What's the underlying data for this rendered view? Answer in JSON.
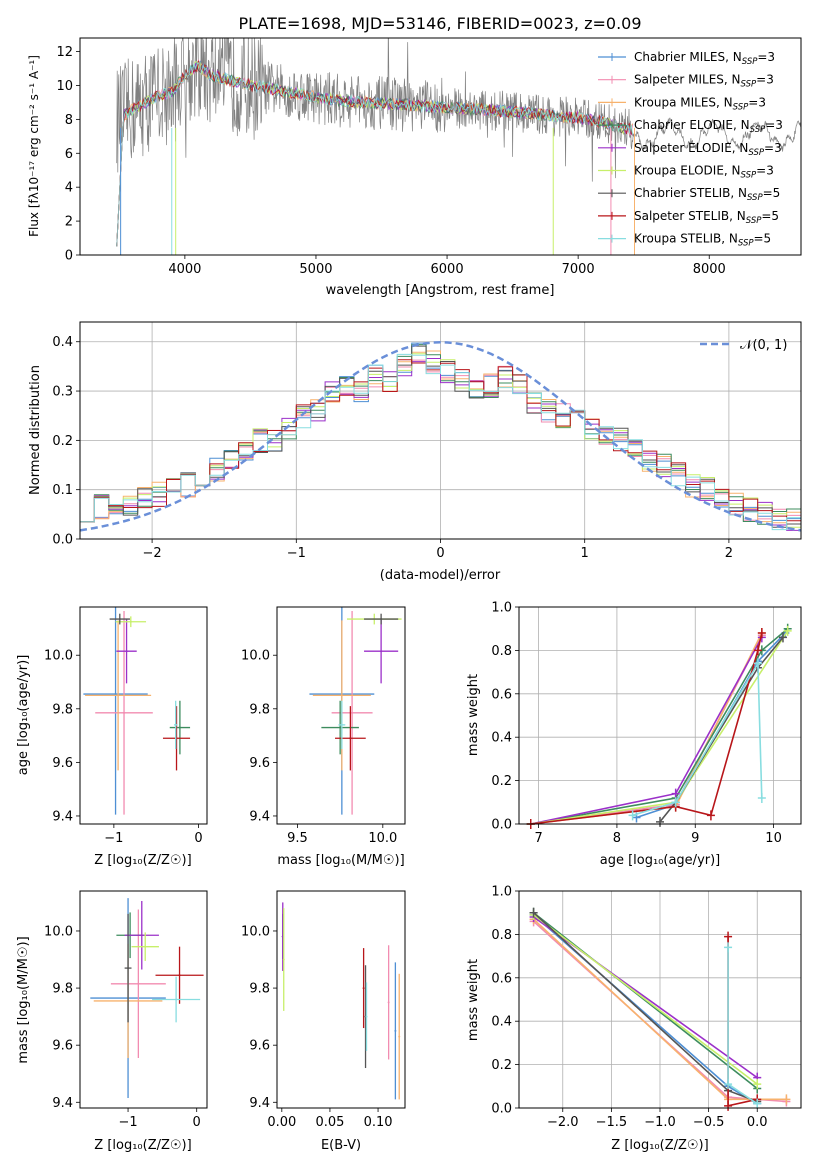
{
  "figure_title": "PLATE=1698, MJD=53146, FIBERID=0023, z=0.09",
  "colors": [
    "#4e8fd4",
    "#f28cb1",
    "#f7b26d",
    "#3d8c5e",
    "#9b30c9",
    "#c7ef6a",
    "#555555",
    "#b8161a",
    "#88dde0"
  ],
  "chart_data": [
    {
      "id": "spectrum",
      "type": "line",
      "xlabel": "wavelength [Angstrom, rest frame]",
      "ylabel": "Flux [fλ10⁻¹⁷ erg cm⁻² s⁻¹ A⁻¹]",
      "xlim": [
        3200,
        8700
      ],
      "ylim": [
        0,
        12.8
      ],
      "xticks": [
        4000,
        5000,
        6000,
        7000,
        8000
      ],
      "yticks": [
        0,
        2,
        4,
        6,
        8,
        10,
        12
      ],
      "grid": false,
      "legend": "upper-right",
      "series": [
        {
          "name": "Chabrier MILES, N_SSP=3",
          "label_main": "Chabrier MILES, N",
          "label_sub": "SSP",
          "label_tail": "=3"
        },
        {
          "name": "Salpeter MILES, N_SSP=3",
          "label_main": "Salpeter MILES, N",
          "label_sub": "SSP",
          "label_tail": "=3"
        },
        {
          "name": "Kroupa MILES, N_SSP=3",
          "label_main": "Kroupa MILES, N",
          "label_sub": "SSP",
          "label_tail": "=3"
        },
        {
          "name": "Chabrier ELODIE, N_SSP=3",
          "label_main": "Chabrier ELODIE, N",
          "label_sub": "SSP",
          "label_tail": "=3"
        },
        {
          "name": "Salpeter ELODIE, N_SSP=3",
          "label_main": "Salpeter ELODIE, N",
          "label_sub": "SSP",
          "label_tail": "=3"
        },
        {
          "name": "Kroupa ELODIE, N_SSP=3",
          "label_main": "Kroupa ELODIE, N",
          "label_sub": "SSP",
          "label_tail": "=3"
        },
        {
          "name": "Chabrier STELIB, N_SSP=5",
          "label_main": "Chabrier STELIB, N",
          "label_sub": "SSP",
          "label_tail": "=5"
        },
        {
          "name": "Salpeter STELIB, N_SSP=5",
          "label_main": "Salpeter STELIB, N",
          "label_sub": "SSP",
          "label_tail": "=5"
        },
        {
          "name": "Kroupa STELIB, N_SSP=5",
          "label_main": "Kroupa STELIB, N",
          "label_sub": "SSP",
          "label_tail": "=5"
        }
      ],
      "model_continuum": {
        "x": [
          3500,
          3600,
          3700,
          3800,
          3900,
          4000,
          4100,
          4200,
          4300,
          4400,
          4500,
          4600,
          4800,
          5000,
          5200,
          5400,
          5600,
          5800,
          6000,
          6200,
          6400,
          6600,
          6800,
          7000,
          7200,
          7400
        ],
        "y": [
          8.0,
          8.6,
          9.0,
          9.4,
          9.6,
          10.6,
          11.2,
          10.6,
          10.4,
          10.2,
          10.0,
          9.9,
          9.6,
          9.3,
          9.1,
          9.0,
          8.9,
          8.8,
          8.7,
          8.6,
          8.5,
          8.4,
          8.2,
          8.1,
          7.8,
          7.4
        ]
      }
    },
    {
      "id": "residuals",
      "type": "line",
      "xlabel": "(data-model)/error",
      "ylabel": "Normed distribution",
      "xlim": [
        -2.5,
        2.5
      ],
      "ylim": [
        0,
        0.44
      ],
      "xticks": [
        -2,
        -1,
        0,
        1,
        2
      ],
      "xticklabels": [
        "−2",
        "−1",
        "0",
        "1",
        "2"
      ],
      "yticks": [
        0.0,
        0.1,
        0.2,
        0.3,
        0.4
      ],
      "yticklabels": [
        "0.0",
        "0.1",
        "0.2",
        "0.3",
        "0.4"
      ],
      "grid": true,
      "legend": "upper-right",
      "reference_curve": {
        "name": "𝒩(0, 1)",
        "mean": 0,
        "std": 1,
        "color": "#6a8fd8"
      },
      "histogram": {
        "bin_width": 0.1,
        "x": [
          -2.45,
          -2.35,
          -2.25,
          -2.15,
          -2.05,
          -1.95,
          -1.85,
          -1.75,
          -1.65,
          -1.55,
          -1.45,
          -1.35,
          -1.25,
          -1.15,
          -1.05,
          -0.95,
          -0.85,
          -0.75,
          -0.65,
          -0.55,
          -0.45,
          -0.35,
          -0.25,
          -0.15,
          -0.05,
          0.05,
          0.15,
          0.25,
          0.35,
          0.45,
          0.55,
          0.65,
          0.75,
          0.85,
          0.95,
          1.05,
          1.15,
          1.25,
          1.35,
          1.45,
          1.55,
          1.65,
          1.75,
          1.85,
          1.95,
          2.05,
          2.15,
          2.25,
          2.35,
          2.45
        ],
        "y": [
          0.06,
          0.065,
          0.055,
          0.07,
          0.08,
          0.09,
          0.1,
          0.11,
          0.13,
          0.14,
          0.16,
          0.18,
          0.2,
          0.2,
          0.22,
          0.25,
          0.26,
          0.3,
          0.31,
          0.3,
          0.33,
          0.32,
          0.35,
          0.38,
          0.36,
          0.34,
          0.32,
          0.3,
          0.31,
          0.33,
          0.31,
          0.28,
          0.26,
          0.25,
          0.24,
          0.22,
          0.21,
          0.2,
          0.18,
          0.16,
          0.15,
          0.13,
          0.11,
          0.1,
          0.08,
          0.07,
          0.06,
          0.05,
          0.04,
          0.04
        ]
      }
    },
    {
      "id": "z-vs-age",
      "type": "scatter",
      "xlabel": "Z [log₁₀(Z/Z☉)]",
      "ylabel": "age  [log₁₀(age/yr)]",
      "xlim": [
        -1.4,
        0.1
      ],
      "ylim": [
        9.37,
        10.18
      ],
      "xticks": [
        -1,
        0
      ],
      "xticklabels": [
        "−1",
        "0"
      ],
      "yticks": [
        9.4,
        9.6,
        9.8,
        10.0
      ],
      "yticklabels": [
        "9.4",
        "9.6",
        "9.8",
        "10.0"
      ],
      "grid": false,
      "points": [
        {
          "x": -0.98,
          "y": 9.855,
          "xerr": 0.38,
          "yerr": 0.45,
          "series": 0
        },
        {
          "x": -0.88,
          "y": 9.785,
          "xerr": 0.34,
          "yerr": 0.38,
          "series": 1
        },
        {
          "x": -0.95,
          "y": 9.85,
          "xerr": 0.39,
          "yerr": 0.28,
          "series": 2
        },
        {
          "x": -0.22,
          "y": 9.73,
          "xerr": 0.12,
          "yerr": 0.1,
          "series": 3
        },
        {
          "x": -0.85,
          "y": 10.015,
          "xerr": 0.12,
          "yerr": 0.12,
          "series": 4
        },
        {
          "x": -0.8,
          "y": 10.125,
          "xerr": 0.18,
          "yerr": 0.02,
          "series": 5
        },
        {
          "x": -0.93,
          "y": 10.135,
          "xerr": 0.12,
          "yerr": 0.02,
          "series": 6
        },
        {
          "x": -0.26,
          "y": 9.69,
          "xerr": 0.16,
          "yerr": 0.12,
          "series": 7
        },
        {
          "x": -0.27,
          "y": 9.74,
          "xerr": 0.02,
          "yerr": 0.09,
          "series": 8
        }
      ]
    },
    {
      "id": "mass-vs-age",
      "type": "scatter",
      "xlabel": "mass [log₁₀(M/M☉)]",
      "ylabel": "",
      "xlim": [
        9.38,
        10.13
      ],
      "ylim": [
        9.37,
        10.18
      ],
      "xticks": [
        9.5,
        10.0
      ],
      "xticklabels": [
        "9.5",
        "10.0"
      ],
      "yticks": [
        9.4,
        9.6,
        9.8,
        10.0
      ],
      "yticklabels": [
        "9.4",
        "9.6",
        "9.8",
        "10.0"
      ],
      "grid": false,
      "points": [
        {
          "x": 9.76,
          "y": 9.855,
          "xerr": 0.19,
          "yerr": 0.45,
          "series": 0
        },
        {
          "x": 9.82,
          "y": 9.785,
          "xerr": 0.12,
          "yerr": 0.38,
          "series": 1
        },
        {
          "x": 9.76,
          "y": 9.85,
          "xerr": 0.17,
          "yerr": 0.28,
          "series": 2
        },
        {
          "x": 9.75,
          "y": 9.73,
          "xerr": 0.11,
          "yerr": 0.1,
          "series": 3
        },
        {
          "x": 9.99,
          "y": 10.015,
          "xerr": 0.1,
          "yerr": 0.12,
          "series": 4
        },
        {
          "x": 9.95,
          "y": 10.135,
          "xerr": 0.16,
          "yerr": 0.02,
          "series": 5
        },
        {
          "x": 9.99,
          "y": 10.135,
          "xerr": 0.1,
          "yerr": 0.02,
          "series": 6
        },
        {
          "x": 9.81,
          "y": 9.69,
          "xerr": 0.09,
          "yerr": 0.12,
          "series": 7
        },
        {
          "x": 9.76,
          "y": 9.74,
          "xerr": 0.02,
          "yerr": 0.09,
          "series": 8
        }
      ]
    },
    {
      "id": "age-weights",
      "type": "line",
      "xlabel": "age  [log₁₀(age/yr)]",
      "ylabel": "mass weight",
      "xlim": [
        6.75,
        10.35
      ],
      "ylim": [
        0,
        1.0
      ],
      "xticks": [
        7,
        8,
        9,
        10
      ],
      "yticks": [
        0.0,
        0.2,
        0.4,
        0.6,
        0.8,
        1.0
      ],
      "yticklabels": [
        "0.0",
        "0.2",
        "0.4",
        "0.6",
        "0.8",
        "1.0"
      ],
      "grid": true,
      "series": [
        {
          "series": 0,
          "x": [
            8.25,
            8.75,
            9.8,
            10.15
          ],
          "y": [
            0.03,
            0.09,
            0.75,
            0.88
          ]
        },
        {
          "series": 1,
          "x": [
            6.9,
            8.75,
            9.85
          ],
          "y": [
            0.0,
            0.09,
            0.87
          ]
        },
        {
          "series": 2,
          "x": [
            6.9,
            8.75,
            9.85
          ],
          "y": [
            0.0,
            0.08,
            0.88
          ]
        },
        {
          "series": 3,
          "x": [
            6.9,
            8.75,
            9.85,
            10.18
          ],
          "y": [
            0.0,
            0.12,
            0.8,
            0.9
          ]
        },
        {
          "series": 4,
          "x": [
            6.9,
            8.75,
            9.85
          ],
          "y": [
            0.0,
            0.14,
            0.86
          ]
        },
        {
          "series": 5,
          "x": [
            6.9,
            8.75,
            10.18
          ],
          "y": [
            0.0,
            0.1,
            0.89
          ]
        },
        {
          "series": 6,
          "x": [
            8.55,
            8.75,
            9.8,
            10.12
          ],
          "y": [
            0.01,
            0.1,
            0.72,
            0.86
          ]
        },
        {
          "series": 7,
          "x": [
            6.9,
            8.75,
            9.2,
            9.8,
            9.85
          ],
          "y": [
            0.0,
            0.08,
            0.04,
            0.8,
            0.88
          ]
        },
        {
          "series": 8,
          "x": [
            8.2,
            8.75,
            9.8,
            9.85
          ],
          "y": [
            0.04,
            0.1,
            0.74,
            0.12
          ]
        }
      ]
    },
    {
      "id": "z-vs-mass",
      "type": "scatter",
      "xlabel": "Z [log₁₀(Z/Z☉)]",
      "ylabel": "mass [log₁₀(M/M☉)]",
      "xlim": [
        -1.7,
        0.15
      ],
      "ylim": [
        9.38,
        10.14
      ],
      "xticks": [
        -1,
        0
      ],
      "xticklabels": [
        "−1",
        "0"
      ],
      "yticks": [
        9.4,
        9.6,
        9.8,
        10.0
      ],
      "yticklabels": [
        "9.4",
        "9.6",
        "9.8",
        "10.0"
      ],
      "grid": false,
      "points": [
        {
          "x": -1.0,
          "y": 9.765,
          "xerr": 0.55,
          "yerr": 0.35,
          "series": 0
        },
        {
          "x": -0.85,
          "y": 9.815,
          "xerr": 0.4,
          "yerr": 0.26,
          "series": 1
        },
        {
          "x": -1.0,
          "y": 9.755,
          "xerr": 0.5,
          "yerr": 0.2,
          "series": 2
        },
        {
          "x": -0.97,
          "y": 9.985,
          "xerr": 0.2,
          "yerr": 0.08,
          "series": 3
        },
        {
          "x": -0.8,
          "y": 9.985,
          "xerr": 0.25,
          "yerr": 0.12,
          "series": 4
        },
        {
          "x": -0.75,
          "y": 9.945,
          "xerr": 0.2,
          "yerr": 0.05,
          "series": 5
        },
        {
          "x": -1.0,
          "y": 9.87,
          "xerr": 0.05,
          "yerr": 0.19,
          "series": 6
        },
        {
          "x": -0.25,
          "y": 9.845,
          "xerr": 0.35,
          "yerr": 0.1,
          "series": 7
        },
        {
          "x": -0.3,
          "y": 9.76,
          "xerr": 0.35,
          "yerr": 0.08,
          "series": 8
        }
      ]
    },
    {
      "id": "ebv-vs-mass",
      "type": "scatter",
      "xlabel": "E(B-V)",
      "ylabel": "",
      "xlim": [
        -0.005,
        0.128
      ],
      "ylim": [
        9.38,
        10.14
      ],
      "xticks": [
        0.0,
        0.05,
        0.1
      ],
      "xticklabels": [
        "0.00",
        "0.05",
        "0.10"
      ],
      "yticks": [
        9.4,
        9.6,
        9.8,
        10.0
      ],
      "yticklabels": [
        "9.4",
        "9.6",
        "9.8",
        "10.0"
      ],
      "grid": false,
      "points": [
        {
          "x": 0.118,
          "y": 9.65,
          "yerr": 0.24,
          "series": 0
        },
        {
          "x": 0.111,
          "y": 9.75,
          "yerr": 0.2,
          "series": 1
        },
        {
          "x": 0.122,
          "y": 9.63,
          "yerr": 0.22,
          "series": 2
        },
        {
          "x": 0.001,
          "y": 9.98,
          "yerr": 0.08,
          "series": 3
        },
        {
          "x": 0.001,
          "y": 9.98,
          "yerr": 0.12,
          "series": 4
        },
        {
          "x": 0.002,
          "y": 9.9,
          "yerr": 0.18,
          "series": 5
        },
        {
          "x": 0.087,
          "y": 9.7,
          "yerr": 0.18,
          "series": 6
        },
        {
          "x": 0.085,
          "y": 9.8,
          "yerr": 0.14,
          "series": 7
        },
        {
          "x": 0.088,
          "y": 9.7,
          "yerr": 0.12,
          "series": 8
        }
      ]
    },
    {
      "id": "z-weights",
      "type": "line",
      "xlabel": "Z [log₁₀(Z/Z☉)]",
      "ylabel": "mass weight",
      "xlim": [
        -2.45,
        0.45
      ],
      "ylim": [
        0,
        1.0
      ],
      "xticks": [
        -2.0,
        -1.5,
        -1.0,
        -0.5,
        0.0
      ],
      "xticklabels": [
        "−2.0",
        "−1.5",
        "−1.0",
        "−0.5",
        "0.0"
      ],
      "yticks": [
        0.0,
        0.2,
        0.4,
        0.6,
        0.8,
        1.0
      ],
      "yticklabels": [
        "0.0",
        "0.2",
        "0.4",
        "0.6",
        "0.8",
        "1.0"
      ],
      "grid": true,
      "series": [
        {
          "series": 0,
          "x": [
            -2.3,
            -0.3,
            0.0
          ],
          "y": [
            0.89,
            0.1,
            0.02
          ]
        },
        {
          "series": 1,
          "x": [
            -2.3,
            -0.3,
            0.3
          ],
          "y": [
            0.86,
            0.05,
            0.03
          ]
        },
        {
          "series": 2,
          "x": [
            -2.3,
            -0.3,
            0.3
          ],
          "y": [
            0.87,
            0.04,
            0.04
          ]
        },
        {
          "series": 3,
          "x": [
            -2.3,
            0.0
          ],
          "y": [
            0.9,
            0.09
          ]
        },
        {
          "series": 4,
          "x": [
            -2.3,
            0.0
          ],
          "y": [
            0.88,
            0.14
          ]
        },
        {
          "series": 5,
          "x": [
            -2.3,
            0.0
          ],
          "y": [
            0.89,
            0.11
          ]
        },
        {
          "series": 6,
          "x": [
            -2.3,
            -0.3,
            0.0
          ],
          "y": [
            0.9,
            0.08,
            0.03
          ]
        },
        {
          "series": 7,
          "x": [
            -0.3,
            -0.3,
            0.0
          ],
          "y": [
            0.79,
            0.01,
            0.04
          ]
        },
        {
          "series": 8,
          "x": [
            -0.3,
            -0.3,
            0.0
          ],
          "y": [
            0.74,
            0.11,
            0.02
          ]
        }
      ]
    }
  ]
}
